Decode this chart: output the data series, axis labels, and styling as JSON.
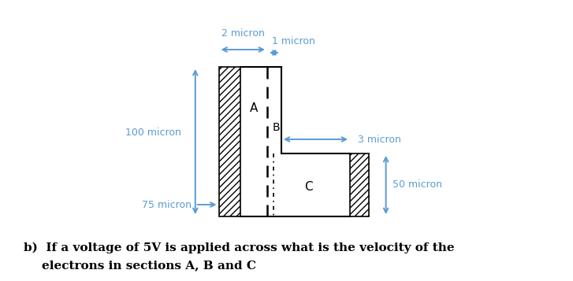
{
  "bg_color": "#ffffff",
  "arrow_color": "#5B9BD5",
  "text_color": "#000000",
  "line_color": "#000000",
  "fig_width": 7.27,
  "fig_height": 3.57,
  "bottom_text_line1": "b)  If a voltage of 5V is applied across what is the velocity of the",
  "bottom_text_line2": "      electrons in sections A, B and C",
  "label_A": "A",
  "label_B": "B",
  "label_C": "C",
  "dim_100": "100 micron",
  "dim_75": "75 micron",
  "dim_2": "2 micron",
  "dim_1": "1 micron",
  "dim_3": "3 micron",
  "dim_50": "50 micron"
}
